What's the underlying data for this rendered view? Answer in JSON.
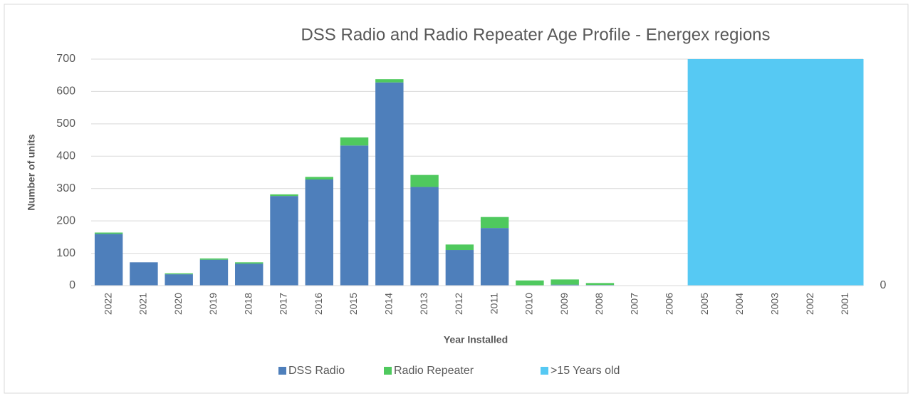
{
  "chart_data": {
    "type": "bar",
    "stacked": true,
    "title": "DSS Radio and Radio Repeater Age Profile - Energex regions",
    "x_label": "Year Installed",
    "y_label": "Number of units",
    "categories": [
      "2022",
      "2021",
      "2020",
      "2019",
      "2018",
      "2017",
      "2016",
      "2015",
      "2014",
      "2013",
      "2012",
      "2011",
      "2010",
      "2009",
      "2008",
      "2007",
      "2006",
      "2005",
      "2004",
      "2003",
      "2002",
      "2001"
    ],
    "series": [
      {
        "name": "DSS Radio",
        "color": "#4e7fbb",
        "values": [
          160,
          72,
          35,
          80,
          68,
          277,
          328,
          433,
          628,
          305,
          110,
          178,
          0,
          3,
          2,
          0,
          0,
          0,
          0,
          0,
          0,
          0
        ]
      },
      {
        "name": "Radio Repeater",
        "color": "#4fc95e",
        "values": [
          4,
          0,
          3,
          4,
          4,
          5,
          8,
          25,
          10,
          37,
          17,
          34,
          16,
          16,
          6,
          0,
          0,
          0,
          0,
          0,
          0,
          0
        ]
      },
      {
        "name": ">15 Years old",
        "color": "#56c9f3",
        "axis": "y2",
        "values": [
          null,
          null,
          null,
          null,
          null,
          null,
          null,
          null,
          null,
          null,
          null,
          null,
          null,
          null,
          null,
          null,
          null,
          1,
          1,
          1,
          1,
          1
        ]
      }
    ],
    "ylim": [
      0,
      700
    ],
    "yticks": [
      0,
      100,
      200,
      300,
      400,
      500,
      600,
      700
    ],
    "y2lim": [
      0,
      1
    ],
    "y2ticks": [
      0
    ],
    "grid": true,
    "legend": "bottom"
  }
}
